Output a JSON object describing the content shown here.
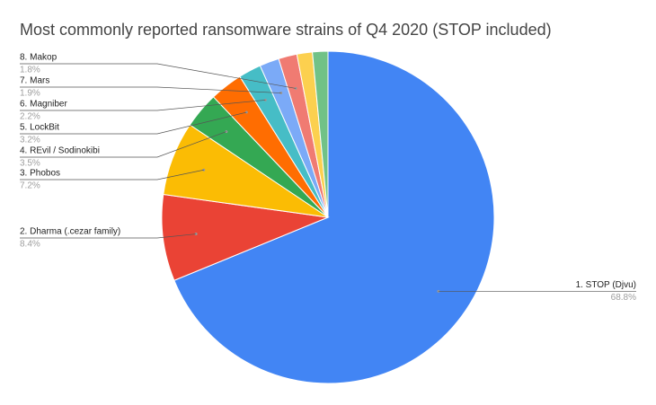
{
  "chart_data": {
    "type": "pie",
    "title": "Most commonly reported ransomware strains of Q4 2020 (STOP included)",
    "categories": [
      "1. STOP (Djvu)",
      "2. Dharma (.cezar family)",
      "3. Phobos",
      "4. REvil / Sodinokibi",
      "5. LockBit",
      "6. Magniber",
      "7. Mars",
      "8. Makop",
      null,
      null
    ],
    "values": [
      68.8,
      8.4,
      7.2,
      3.5,
      3.2,
      2.2,
      1.9,
      1.8,
      1.5,
      1.5
    ],
    "value_labels": [
      "68.8%",
      "8.4%",
      "7.2%",
      "3.5%",
      "3.2%",
      "2.2%",
      "1.9%",
      "1.8%",
      null,
      null
    ],
    "colors": [
      "#4285f4",
      "#ea4335",
      "#fbbc04",
      "#34a853",
      "#ff6d01",
      "#46bdc6",
      "#7baaf7",
      "#f07b72",
      "#fcd04f",
      "#71c287"
    ]
  }
}
